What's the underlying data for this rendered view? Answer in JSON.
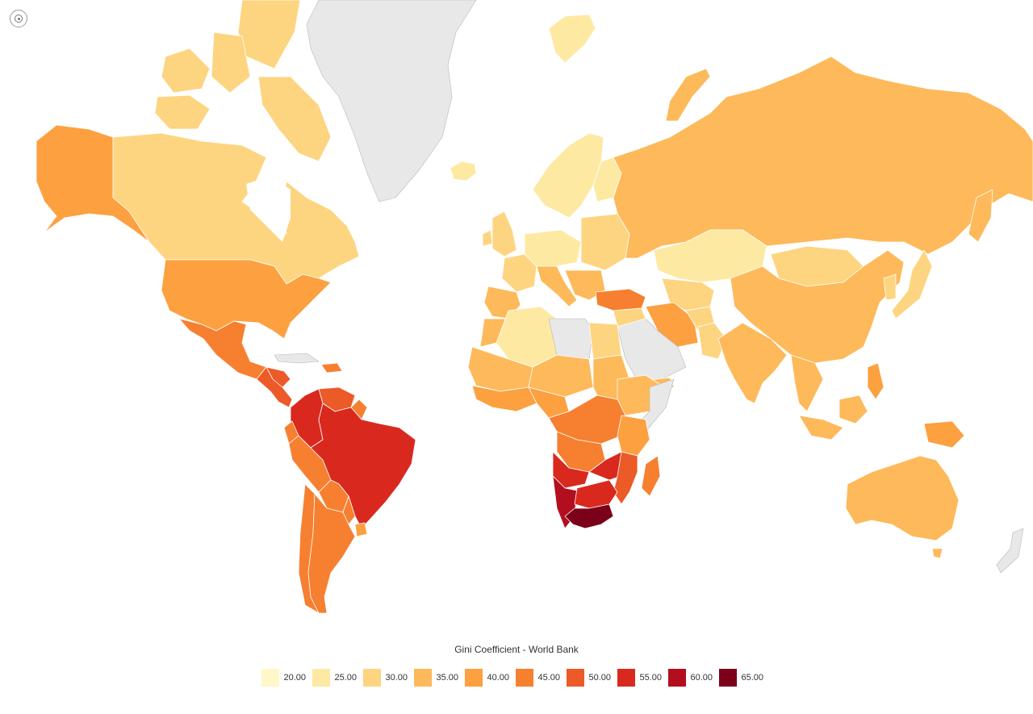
{
  "map": {
    "title": "Gini Coefficient - World Bank",
    "controls": {
      "reset_icon": "target-icon"
    },
    "colors": {
      "c20": "#fff7c8",
      "c25": "#fee9a3",
      "c30": "#fdd580",
      "c35": "#fdb95a",
      "c40": "#fca040",
      "c45": "#f77f30",
      "c50": "#ec5a27",
      "c55": "#d9291e",
      "c60": "#b30e1f",
      "c65": "#7b0019",
      "nodata": "#e8e8e8"
    },
    "legend": [
      {
        "label": "20.00",
        "color": "#fff7c8"
      },
      {
        "label": "25.00",
        "color": "#fee9a3"
      },
      {
        "label": "30.00",
        "color": "#fdd580"
      },
      {
        "label": "35.00",
        "color": "#fdb95a"
      },
      {
        "label": "40.00",
        "color": "#fca040"
      },
      {
        "label": "45.00",
        "color": "#f77f30"
      },
      {
        "label": "50.00",
        "color": "#ec5a27"
      },
      {
        "label": "55.00",
        "color": "#d9291e"
      },
      {
        "label": "60.00",
        "color": "#b30e1f"
      },
      {
        "label": "65.00",
        "color": "#7b0019"
      }
    ]
  }
}
